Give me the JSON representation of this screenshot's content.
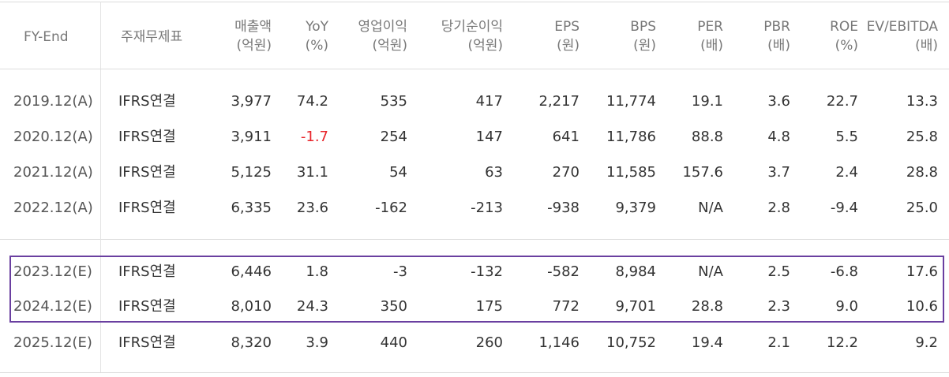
{
  "headers": [
    {
      "line1": "FY-End",
      "line2": ""
    },
    {
      "line1": "주재무제표",
      "line2": ""
    },
    {
      "line1": "매출액",
      "line2": "(억원)"
    },
    {
      "line1": "YoY",
      "line2": "(%)"
    },
    {
      "line1": "영업이익",
      "line2": "(억원)"
    },
    {
      "line1": "당기순이익",
      "line2": "(억원)"
    },
    {
      "line1": "EPS",
      "line2": "(원)"
    },
    {
      "line1": "BPS",
      "line2": "(원)"
    },
    {
      "line1": "PER",
      "line2": "(배)"
    },
    {
      "line1": "PBR",
      "line2": "(배)"
    },
    {
      "line1": "ROE",
      "line2": "(%)"
    },
    {
      "line1": "EV/EBITDA",
      "line2": "(배)"
    }
  ],
  "rows": [
    [
      "2019.12(A)",
      "IFRS연결",
      "3,977",
      "74.2",
      "535",
      "417",
      "2,217",
      "11,774",
      "19.1",
      "3.6",
      "22.7",
      "13.3"
    ],
    [
      "2020.12(A)",
      "IFRS연결",
      "3,911",
      "-1.7",
      "254",
      "147",
      "641",
      "11,786",
      "88.8",
      "4.8",
      "5.5",
      "25.8"
    ],
    [
      "2021.12(A)",
      "IFRS연결",
      "5,125",
      "31.1",
      "54",
      "63",
      "270",
      "11,585",
      "157.6",
      "3.7",
      "2.4",
      "28.8"
    ],
    [
      "2022.12(A)",
      "IFRS연결",
      "6,335",
      "23.6",
      "-162",
      "-213",
      "-938",
      "9,379",
      "N/A",
      "2.8",
      "-9.4",
      "25.0"
    ],
    [
      "2023.12(E)",
      "IFRS연결",
      "6,446",
      "1.8",
      "-3",
      "-132",
      "-582",
      "8,984",
      "N/A",
      "2.5",
      "-6.8",
      "17.6"
    ],
    [
      "2024.12(E)",
      "IFRS연결",
      "8,010",
      "24.3",
      "350",
      "175",
      "772",
      "9,701",
      "28.8",
      "2.3",
      "9.0",
      "10.6"
    ],
    [
      "2025.12(E)",
      "IFRS연결",
      "8,320",
      "3.9",
      "440",
      "260",
      "1,146",
      "10,752",
      "19.4",
      "2.1",
      "12.2",
      "9.2"
    ]
  ],
  "colors": {
    "negative_yoy": "#e8242a",
    "highlight_border": "#6a3fa0"
  }
}
